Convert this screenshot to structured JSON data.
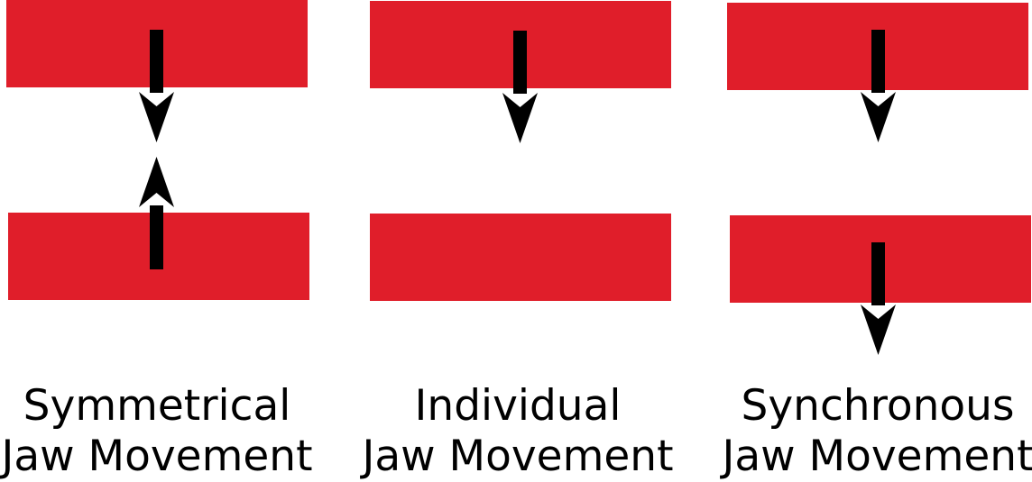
{
  "colors": {
    "jaw": "#e01e2a",
    "arrow": "#000000",
    "background": "#ffffff"
  },
  "panels": [
    {
      "name": "symmetrical",
      "caption_line1": "Symmetrical",
      "caption_line2": "Jaw Movement"
    },
    {
      "name": "individual",
      "caption_line1": "Individual",
      "caption_line2": "Jaw Movement"
    },
    {
      "name": "synchronous",
      "caption_line1": "Synchronous",
      "caption_line2": "Jaw Movement"
    }
  ]
}
